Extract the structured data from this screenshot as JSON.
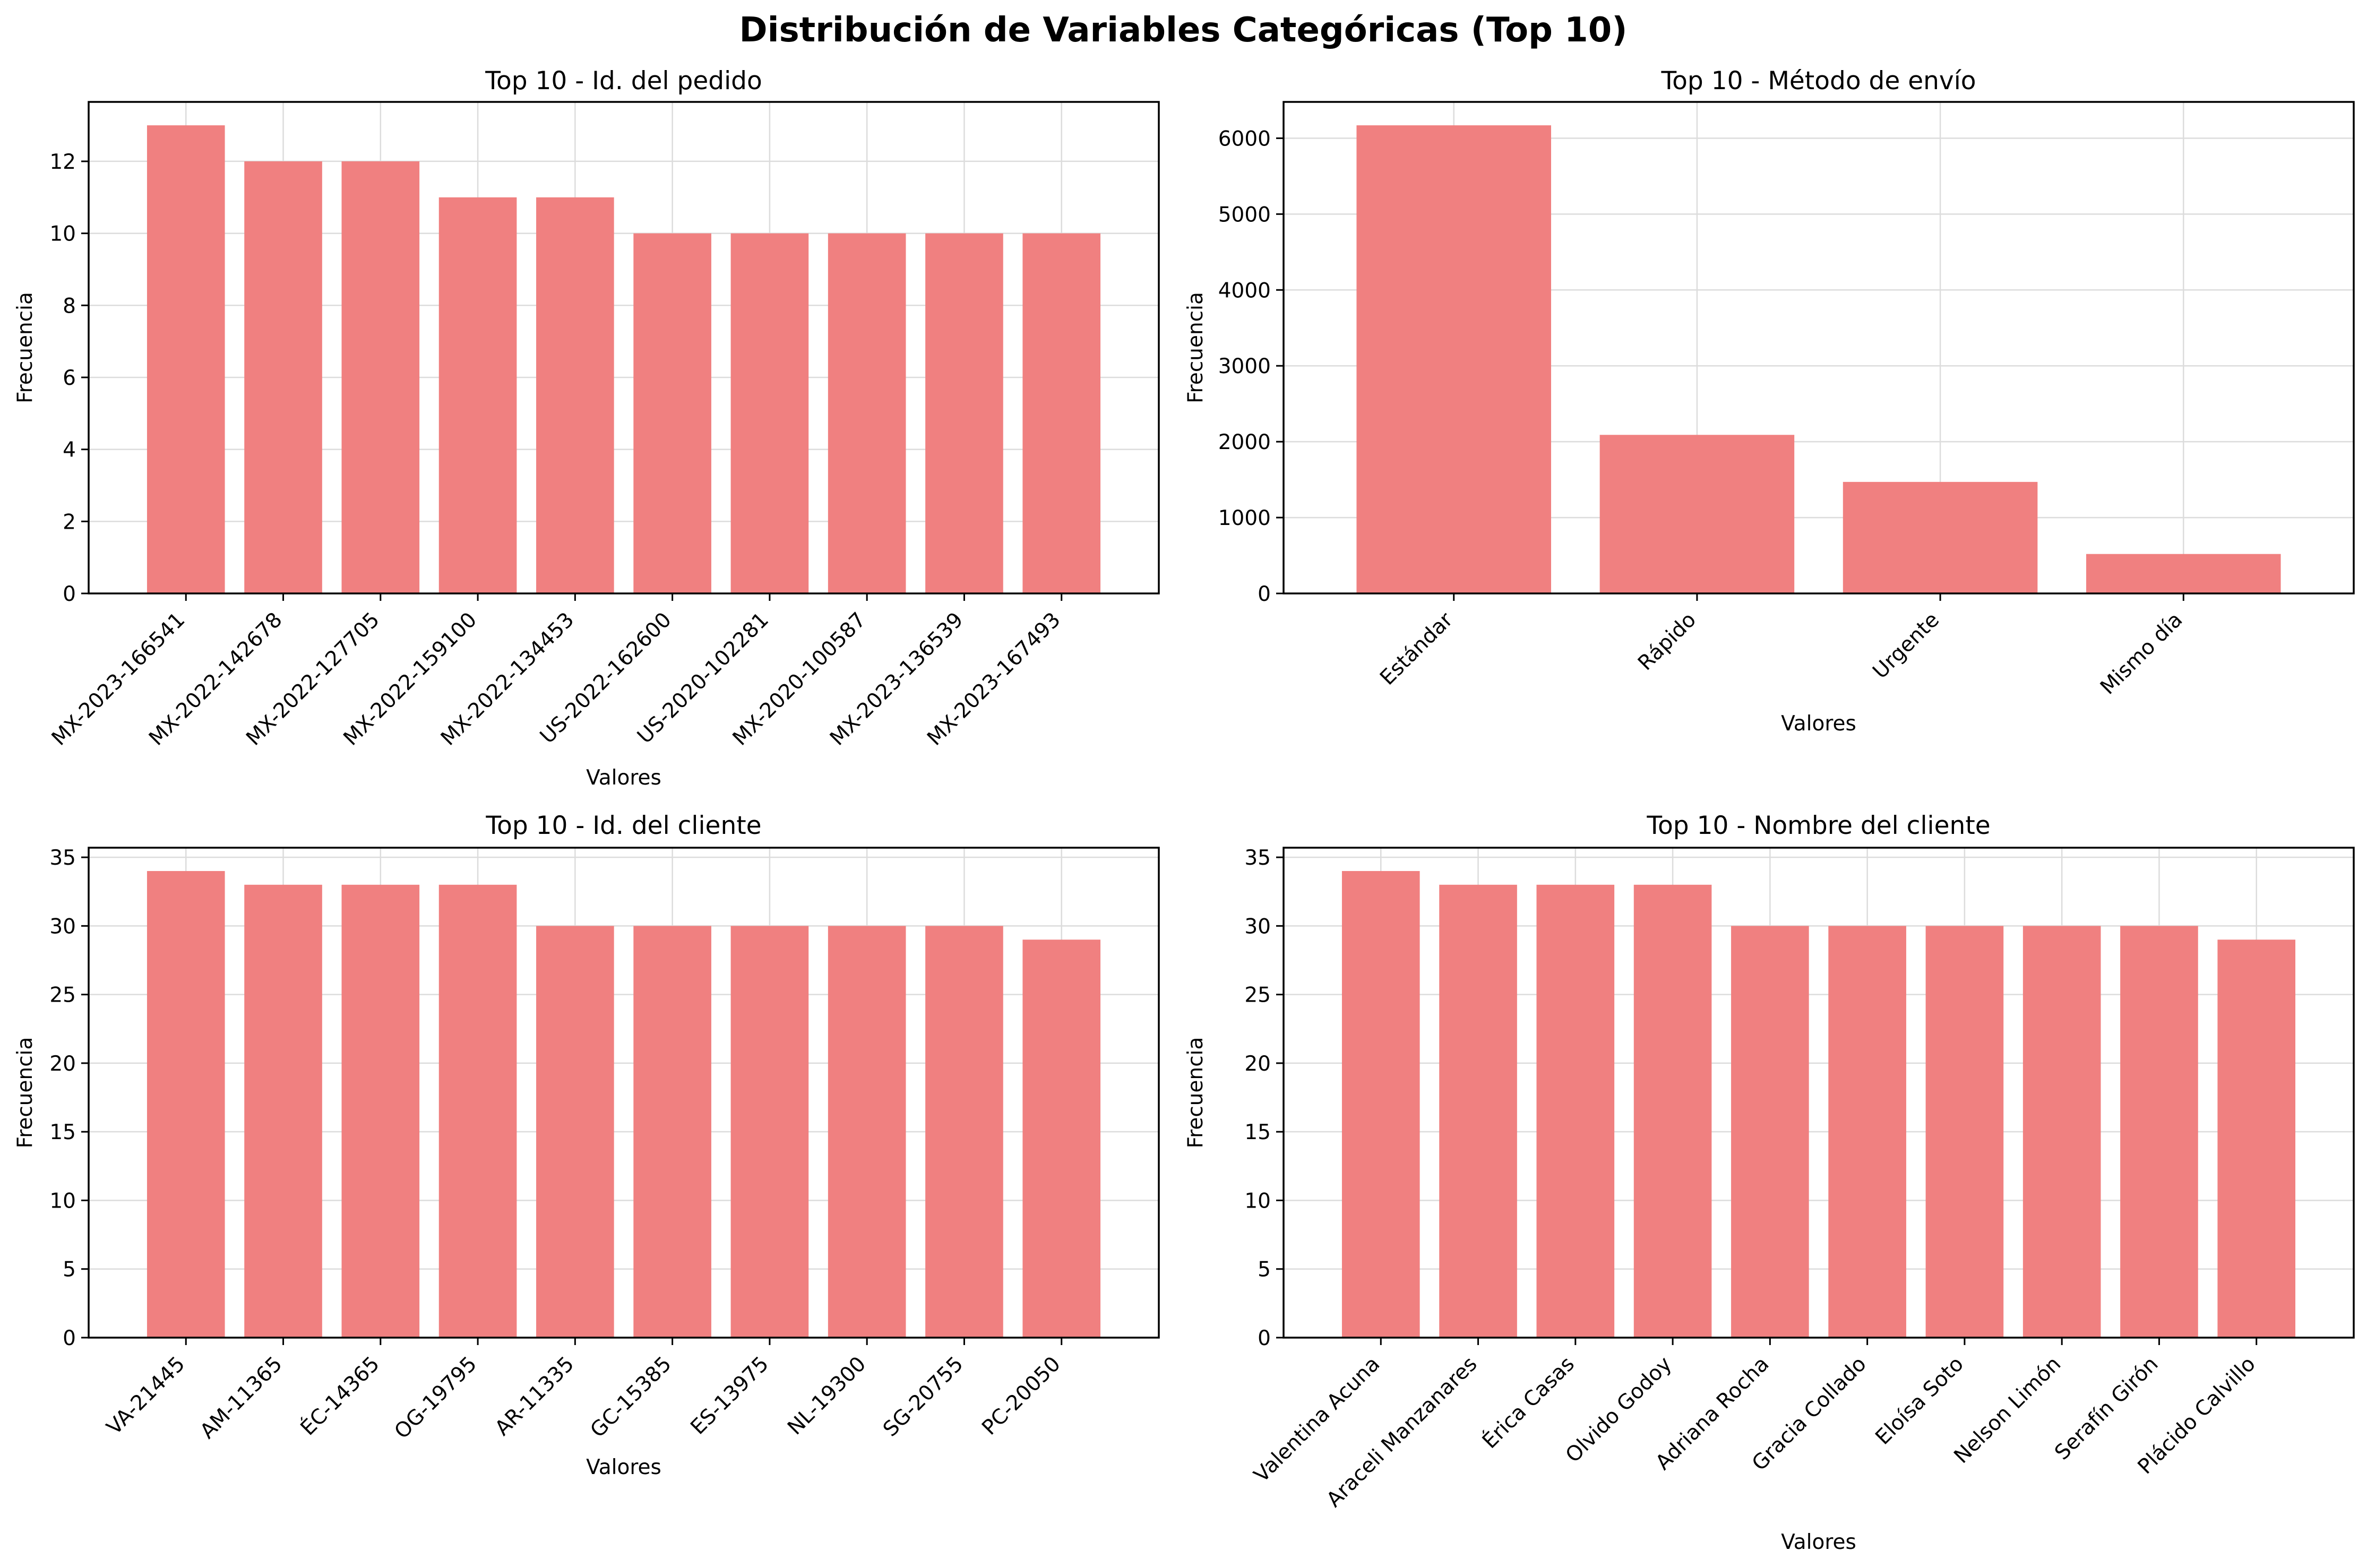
{
  "figure_title": "Distribución de Variables Categóricas (Top 10)",
  "colors": {
    "bar": "#f08080",
    "grid": "#dcdcdc",
    "axis": "#000000"
  },
  "chart_data": [
    {
      "type": "bar",
      "title": "Top 10 - Id. del pedido",
      "xlabel": "Valores",
      "ylabel": "Frecuencia",
      "categories": [
        "MX-2023-166541",
        "MX-2022-142678",
        "MX-2022-127705",
        "MX-2022-159100",
        "MX-2022-134453",
        "US-2022-162600",
        "US-2020-102281",
        "MX-2020-100587",
        "MX-2023-136539",
        "MX-2023-167493"
      ],
      "values": [
        13,
        12,
        12,
        11,
        11,
        10,
        10,
        10,
        10,
        10
      ],
      "ylim": [
        0,
        13.65
      ],
      "yticks": [
        0,
        2,
        4,
        6,
        8,
        10,
        12
      ],
      "grid": true
    },
    {
      "type": "bar",
      "title": "Top 10 - Método de envío",
      "xlabel": "Valores",
      "ylabel": "Frecuencia",
      "categories": [
        "Estándar",
        "Rápido",
        "Urgente",
        "Mismo día"
      ],
      "values": [
        6170,
        2090,
        1470,
        520
      ],
      "ylim": [
        0,
        6478.5
      ],
      "yticks": [
        0,
        1000,
        2000,
        3000,
        4000,
        5000,
        6000
      ],
      "grid": true
    },
    {
      "type": "bar",
      "title": "Top 10 - Id. del cliente",
      "xlabel": "Valores",
      "ylabel": "Frecuencia",
      "categories": [
        "VA-21445",
        "AM-11365",
        "ÉC-14365",
        "OG-19795",
        "AR-11335",
        "GC-15385",
        "ES-13975",
        "NL-19300",
        "SG-20755",
        "PC-20050"
      ],
      "values": [
        34,
        33,
        33,
        33,
        30,
        30,
        30,
        30,
        30,
        29
      ],
      "ylim": [
        0,
        35.7
      ],
      "yticks": [
        0,
        5,
        10,
        15,
        20,
        25,
        30,
        35
      ],
      "grid": true
    },
    {
      "type": "bar",
      "title": "Top 10 - Nombre del cliente",
      "xlabel": "Valores",
      "ylabel": "Frecuencia",
      "categories": [
        "Valentina Acuna",
        "Araceli Manzanares",
        "Érica Casas",
        "Olvido Godoy",
        "Adriana Rocha",
        "Gracia Collado",
        "Eloísa Soto",
        "Nelson Limón",
        "Serafín Girón",
        "Plácido Calvillo"
      ],
      "values": [
        34,
        33,
        33,
        33,
        30,
        30,
        30,
        30,
        30,
        29
      ],
      "ylim": [
        0,
        35.7
      ],
      "yticks": [
        0,
        5,
        10,
        15,
        20,
        25,
        30,
        35
      ],
      "grid": true
    }
  ]
}
